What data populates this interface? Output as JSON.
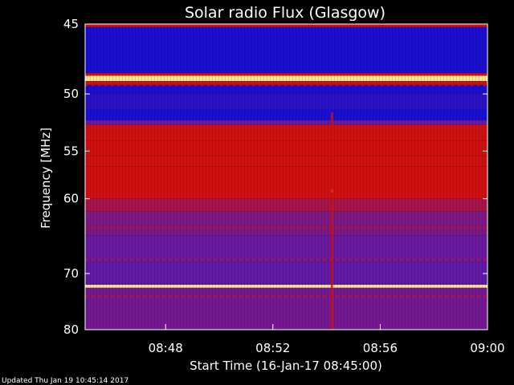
{
  "chart_data": {
    "type": "heatmap",
    "title": "Solar radio Flux (Glasgow)",
    "xlabel": "Start Time (16-Jan-17 08:45:00)",
    "ylabel": "Frequency [MHz]",
    "footer": "Updated Thu Jan 19 10:45:14 2017",
    "x_ticks": [
      "08:48",
      "08:52",
      "08:56",
      "09:00"
    ],
    "x_tick_minutes": [
      3,
      7,
      11,
      15
    ],
    "xlim_minutes": [
      0,
      15
    ],
    "y_ticks": [
      45,
      50,
      55,
      60,
      70,
      80
    ],
    "ylim": [
      45,
      80
    ],
    "y_scale": "reciprocal",
    "grid": false,
    "colors": {
      "background": "#000000",
      "low": "#1a0fd0",
      "mid": "#6a1aa0",
      "high": "#d01010",
      "peak": "#ffe890"
    },
    "bands": [
      {
        "f0": 45.0,
        "f1": 45.2,
        "level": 2
      },
      {
        "f0": 45.2,
        "f1": 48.4,
        "level": 0
      },
      {
        "f0": 48.4,
        "f1": 48.6,
        "level": 2
      },
      {
        "f0": 48.6,
        "f1": 49.0,
        "level": 4
      },
      {
        "f0": 49.0,
        "f1": 49.3,
        "level": 2
      },
      {
        "f0": 49.3,
        "f1": 50.0,
        "level": 0
      },
      {
        "f0": 50.0,
        "f1": 51.3,
        "level": 0.2
      },
      {
        "f0": 51.3,
        "f1": 52.2,
        "level": 0
      },
      {
        "f0": 52.2,
        "f1": 52.6,
        "level": 1
      },
      {
        "f0": 52.6,
        "f1": 52.9,
        "level": 3
      },
      {
        "f0": 52.9,
        "f1": 54.0,
        "level": 2.3
      },
      {
        "f0": 54.0,
        "f1": 55.5,
        "level": 2.6
      },
      {
        "f0": 55.5,
        "f1": 56.5,
        "level": 2.2
      },
      {
        "f0": 56.5,
        "f1": 60.0,
        "level": 2.6
      },
      {
        "f0": 60.0,
        "f1": 61.5,
        "level": 1.6
      },
      {
        "f0": 61.5,
        "f1": 64.5,
        "level": 1.2
      },
      {
        "f0": 64.5,
        "f1": 68.0,
        "level": 1.0
      },
      {
        "f0": 68.0,
        "f1": 71.8,
        "level": 0.9
      },
      {
        "f0": 71.8,
        "f1": 72.3,
        "level": 4
      },
      {
        "f0": 72.3,
        "f1": 80.0,
        "level": 1.1
      }
    ],
    "lines": [
      {
        "freq": 49.3,
        "level": 3,
        "style": "dotted"
      },
      {
        "freq": 63.5,
        "level": 2.2,
        "style": "dotted"
      },
      {
        "freq": 67.9,
        "level": 2.2,
        "style": "dotted"
      },
      {
        "freq": 73.7,
        "level": 3,
        "style": "dotted"
      }
    ],
    "features": [
      {
        "t": 9.2,
        "f0": 51.5,
        "f1": 80,
        "level": 2.6
      },
      {
        "t": 9.2,
        "f0": 58.9,
        "f1": 59.3,
        "level": 3.2
      }
    ]
  }
}
